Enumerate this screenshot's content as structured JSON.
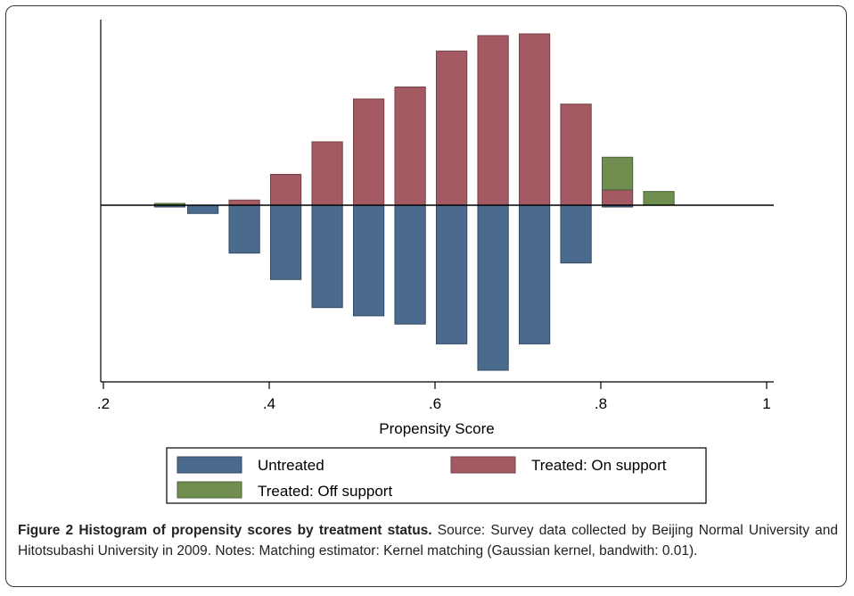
{
  "chart_data": {
    "type": "bar",
    "xlabel": "Propensity Score",
    "ylabel": "",
    "xlim": [
      0.2,
      1.0
    ],
    "x_ticks": [
      ".2",
      ".4",
      ".6",
      ".8",
      "1"
    ],
    "x_tick_values": [
      0.2,
      0.4,
      0.6,
      0.8,
      1.0
    ],
    "bin_width": 0.04,
    "y_range_relative": [
      -1.0,
      1.0
    ],
    "grid": false,
    "legend_position": "bottom",
    "series": [
      {
        "name": "Untreated",
        "color": "#4a6a8e",
        "direction": "down",
        "bins": [
          {
            "x": 0.28,
            "value": 0.01
          },
          {
            "x": 0.32,
            "value": 0.05
          },
          {
            "x": 0.37,
            "value": 0.29
          },
          {
            "x": 0.42,
            "value": 0.45
          },
          {
            "x": 0.47,
            "value": 0.62
          },
          {
            "x": 0.52,
            "value": 0.67
          },
          {
            "x": 0.57,
            "value": 0.72
          },
          {
            "x": 0.62,
            "value": 0.84
          },
          {
            "x": 0.67,
            "value": 1.0
          },
          {
            "x": 0.72,
            "value": 0.84
          },
          {
            "x": 0.77,
            "value": 0.35
          },
          {
            "x": 0.82,
            "value": 0.01
          }
        ]
      },
      {
        "name": "Treated: On support",
        "color": "#a45a63",
        "direction": "up",
        "bins": [
          {
            "x": 0.37,
            "value": 0.03
          },
          {
            "x": 0.42,
            "value": 0.18
          },
          {
            "x": 0.47,
            "value": 0.37
          },
          {
            "x": 0.52,
            "value": 0.62
          },
          {
            "x": 0.57,
            "value": 0.69
          },
          {
            "x": 0.62,
            "value": 0.9
          },
          {
            "x": 0.67,
            "value": 0.99
          },
          {
            "x": 0.72,
            "value": 1.0
          },
          {
            "x": 0.77,
            "value": 0.59
          },
          {
            "x": 0.82,
            "value": 0.09
          }
        ]
      },
      {
        "name": "Treated: Off support",
        "color": "#6f8e50",
        "direction": "up",
        "stack_on": "Treated: On support",
        "bins": [
          {
            "x": 0.28,
            "value": 0.01
          },
          {
            "x": 0.82,
            "value": 0.19
          },
          {
            "x": 0.87,
            "value": 0.08
          }
        ]
      }
    ]
  },
  "caption": {
    "label": "Figure 2 Histogram of propensity scores by treatment status.",
    "text": " Source: Survey data collected by Beijing Normal University and Hitotsubashi University in 2009. Notes: Matching estimator: Kernel matching (Gaussian kernel, bandwith: 0.01)."
  }
}
